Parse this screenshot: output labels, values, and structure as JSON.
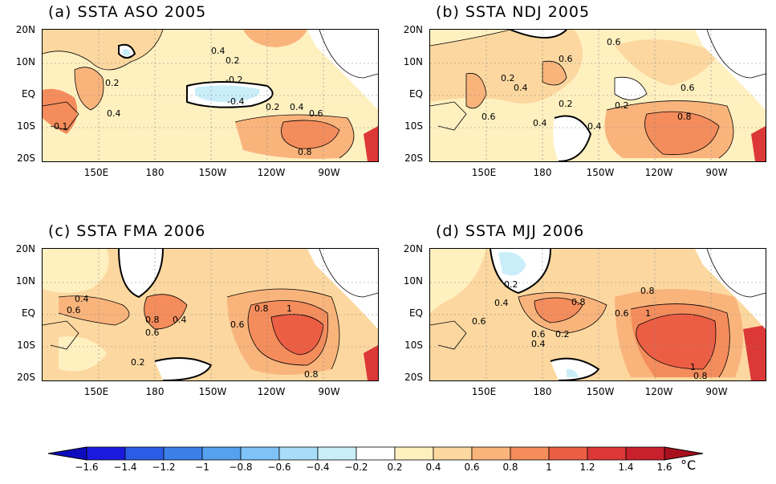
{
  "panels": [
    {
      "id": "a",
      "title": "(a) SSTA ASO 2005"
    },
    {
      "id": "b",
      "title": "(b) SSTA NDJ 2005"
    },
    {
      "id": "c",
      "title": "(c) SSTA FMA 2006"
    },
    {
      "id": "d",
      "title": "(d) SSTA MJJ 2006"
    }
  ],
  "axes": {
    "lat_labels": [
      "20N",
      "10N",
      "EQ",
      "10S",
      "20S"
    ],
    "lon_labels": [
      "150E",
      "180",
      "150W",
      "120W",
      "90W"
    ]
  },
  "contour_labels": {
    "a": [
      "0.4",
      "0.2",
      "0.2",
      "0.4",
      "-0.2",
      "-0.4",
      "0.2",
      "0.4",
      "0.6",
      "0.8",
      "0.1"
    ],
    "b": [
      "0.6",
      "0.6",
      "0.2",
      "0.4",
      "0.2",
      "0.6",
      "0.2",
      "0.4",
      "0.8",
      "0.4",
      "0.6"
    ],
    "c": [
      "0.4",
      "0.6",
      "0.8",
      "0.4",
      "0.6",
      "0.6",
      "0.8",
      "1",
      "0.2",
      "0.8"
    ],
    "d": [
      "0.2",
      "0.4",
      "0.8",
      "0.6",
      "0.8",
      "1",
      "0.6",
      "0.2",
      "0.4",
      "0.6",
      "1",
      "0.8"
    ]
  },
  "colorbar": {
    "ticks": [
      "-1.6",
      "-1.4",
      "-1.2",
      "-1",
      "-0.8",
      "-0.6",
      "-0.4",
      "-0.2",
      "0.2",
      "0.4",
      "0.6",
      "0.8",
      "1",
      "1.2",
      "1.4",
      "1.6"
    ],
    "unit": "°C",
    "colors": [
      "#1a1adc",
      "#2a5ce6",
      "#3b7fe8",
      "#56a0f0",
      "#7fc2f7",
      "#a8dcf8",
      "#c9eef9",
      "#ffffff",
      "#fff0c0",
      "#fcd8a0",
      "#f9b47c",
      "#f48c5c",
      "#ec5e44",
      "#dc3838",
      "#c8202c"
    ]
  }
}
